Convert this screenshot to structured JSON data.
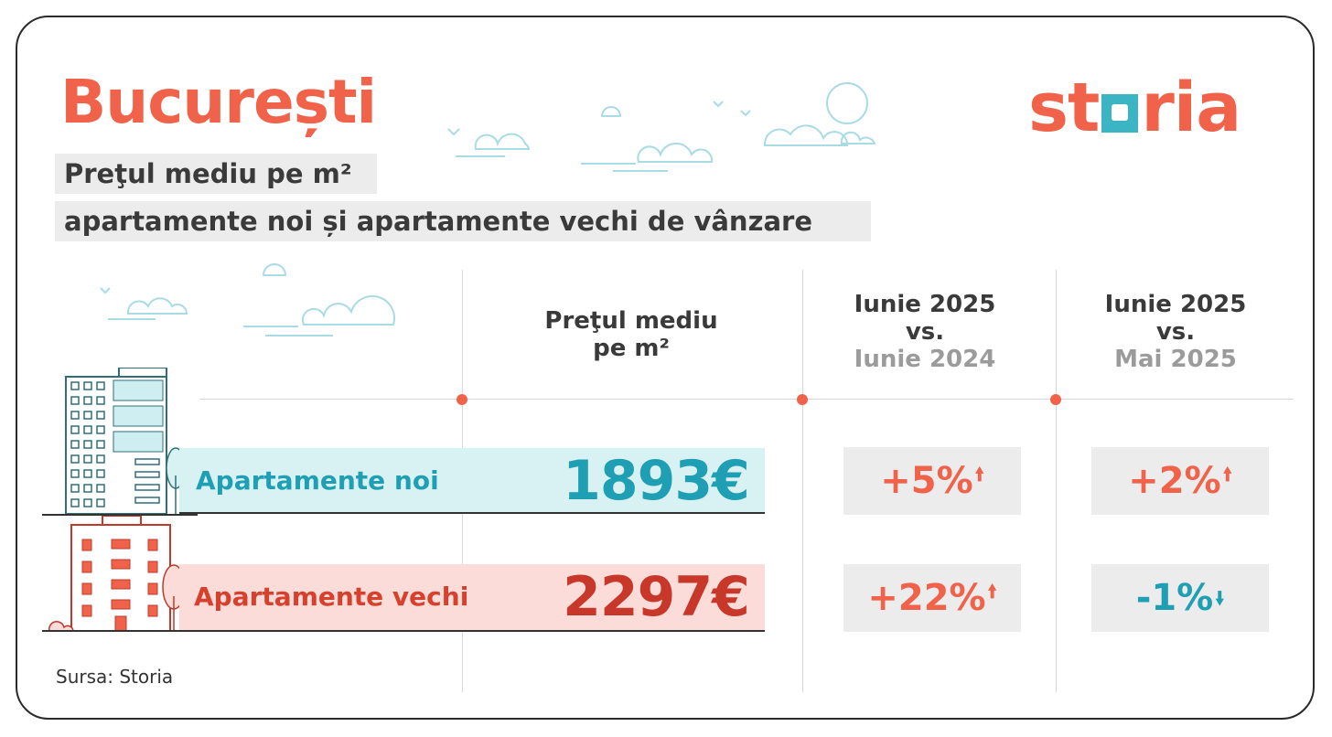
{
  "title": "București",
  "subtitle_line1": "Preţul mediu pe m²",
  "subtitle_line2": "apartamente noi și apartamente vechi de vânzare",
  "logo": {
    "pre": "st",
    "post": "ria"
  },
  "columns": {
    "price_header_line1": "Preţul mediu",
    "price_header_line2": "pe m²",
    "yoy": {
      "line1": "Iunie 2025",
      "line2": "vs.",
      "line3": "Iunie 2024"
    },
    "mom": {
      "line1": "Iunie 2025",
      "line2": "vs.",
      "line3": "Mai 2025"
    }
  },
  "rows": [
    {
      "label": "Apartamente noi",
      "price": "1893€",
      "yoy": "+5%",
      "yoy_dir": "up",
      "mom": "+2%",
      "mom_dir": "up"
    },
    {
      "label": "Apartamente vechi",
      "price": "2297€",
      "yoy": "+22%",
      "yoy_dir": "up",
      "mom": "-1%",
      "mom_dir": "down"
    }
  ],
  "source": "Sursa: Storia",
  "colors": {
    "accent_red": "#f0624a",
    "accent_teal": "#1f9fb3",
    "logo_square": "#3bb5c4"
  },
  "icons": [
    "cloud-icon",
    "bird-icon",
    "tower-building-icon",
    "old-building-icon",
    "tree-icon",
    "arrow-up-icon",
    "arrow-down-icon"
  ]
}
